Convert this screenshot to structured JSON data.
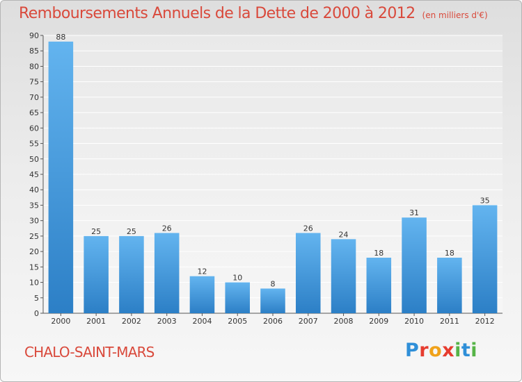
{
  "chart_data": {
    "type": "bar",
    "title": "Remboursements Annuels de la Dette de 2000 à 2012",
    "subtitle": "(en milliers d'€)",
    "categories": [
      "2000",
      "2001",
      "2002",
      "2003",
      "2004",
      "2005",
      "2006",
      "2007",
      "2008",
      "2009",
      "2010",
      "2011",
      "2012"
    ],
    "values": [
      88,
      25,
      25,
      26,
      12,
      10,
      8,
      26,
      24,
      18,
      31,
      18,
      35
    ],
    "ylim": [
      0,
      90
    ],
    "yticks": [
      0,
      5,
      10,
      15,
      20,
      25,
      30,
      35,
      40,
      45,
      50,
      55,
      60,
      65,
      70,
      75,
      80,
      85,
      90
    ],
    "grid": true,
    "legend": "none"
  },
  "footer": {
    "commune": "CHALO-SAINT-MARS",
    "logo_letters": [
      {
        "ch": "P",
        "color": "#2f8fd8"
      },
      {
        "ch": "r",
        "color": "#e63c2f"
      },
      {
        "ch": "o",
        "color": "#f0a21a"
      },
      {
        "ch": "x",
        "color": "#e63c2f"
      },
      {
        "ch": "i",
        "color": "#56b447"
      },
      {
        "ch": "t",
        "color": "#2f8fd8"
      },
      {
        "ch": "i",
        "color": "#56b447"
      }
    ]
  },
  "colors": {
    "bar_top": "#63b4ef",
    "bar_bottom": "#2c7fc6",
    "accent_text": "#d9493b"
  }
}
